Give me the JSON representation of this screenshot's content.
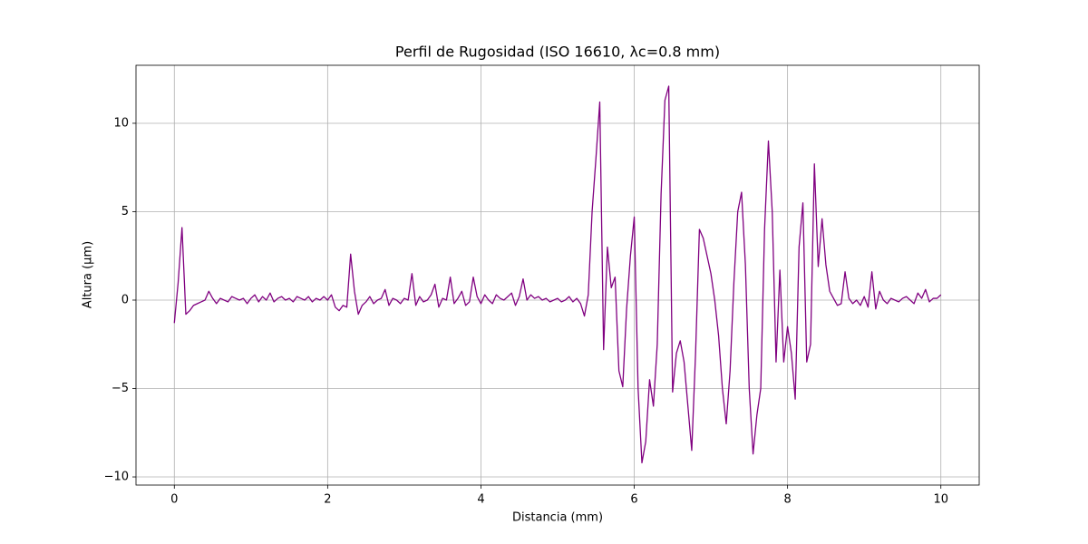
{
  "chart_data": {
    "type": "line",
    "title": "Perfil de Rugosidad (ISO 16610, λc=0.8 mm)",
    "x_label": "Distancia (mm)",
    "y_label": "Altura (µm)",
    "x": [
      0,
      0.05,
      0.1,
      0.15,
      0.2,
      0.25,
      0.3,
      0.35,
      0.4,
      0.45,
      0.5,
      0.55,
      0.6,
      0.65,
      0.7,
      0.75,
      0.8,
      0.85,
      0.9,
      0.95,
      1,
      1.05,
      1.1,
      1.15,
      1.2,
      1.25,
      1.3,
      1.35,
      1.4,
      1.45,
      1.5,
      1.55,
      1.6,
      1.65,
      1.7,
      1.75,
      1.8,
      1.85,
      1.9,
      1.95,
      2,
      2.05,
      2.1,
      2.15,
      2.2,
      2.25,
      2.3,
      2.35,
      2.4,
      2.45,
      2.5,
      2.55,
      2.6,
      2.65,
      2.7,
      2.75,
      2.8,
      2.85,
      2.9,
      2.95,
      3,
      3.05,
      3.1,
      3.15,
      3.2,
      3.25,
      3.3,
      3.35,
      3.4,
      3.45,
      3.5,
      3.55,
      3.6,
      3.65,
      3.7,
      3.75,
      3.8,
      3.85,
      3.9,
      3.95,
      4,
      4.05,
      4.1,
      4.15,
      4.2,
      4.25,
      4.3,
      4.35,
      4.4,
      4.45,
      4.5,
      4.55,
      4.6,
      4.65,
      4.7,
      4.75,
      4.8,
      4.85,
      4.9,
      4.95,
      5,
      5.05,
      5.1,
      5.15,
      5.2,
      5.25,
      5.3,
      5.35,
      5.4,
      5.45,
      5.5,
      5.55,
      5.6,
      5.65,
      5.7,
      5.75,
      5.8,
      5.85,
      5.9,
      5.95,
      6,
      6.05,
      6.1,
      6.15,
      6.2,
      6.25,
      6.3,
      6.35,
      6.4,
      6.45,
      6.5,
      6.55,
      6.6,
      6.65,
      6.7,
      6.75,
      6.8,
      6.85,
      6.9,
      6.95,
      7,
      7.05,
      7.1,
      7.15,
      7.2,
      7.25,
      7.3,
      7.35,
      7.4,
      7.45,
      7.5,
      7.55,
      7.6,
      7.65,
      7.7,
      7.75,
      7.8,
      7.85,
      7.9,
      7.95,
      8,
      8.05,
      8.1,
      8.15,
      8.2,
      8.25,
      8.3,
      8.35,
      8.4,
      8.45,
      8.5,
      8.55,
      8.6,
      8.65,
      8.7,
      8.75,
      8.8,
      8.85,
      8.9,
      8.95,
      9,
      9.05,
      9.1,
      9.15,
      9.2,
      9.25,
      9.3,
      9.35,
      9.4,
      9.45,
      9.5,
      9.55,
      9.6,
      9.65,
      9.7,
      9.75,
      9.8,
      9.85,
      9.9,
      9.95,
      10
    ],
    "series": [
      {
        "color": "#800080",
        "values": [
          -1.3,
          1.0,
          4.1,
          -0.8,
          -0.6,
          -0.3,
          -0.2,
          -0.1,
          0.0,
          0.5,
          0.1,
          -0.2,
          0.1,
          0.0,
          -0.1,
          0.2,
          0.1,
          0.0,
          0.1,
          -0.2,
          0.1,
          0.3,
          -0.1,
          0.2,
          0.0,
          0.4,
          -0.1,
          0.1,
          0.2,
          0.0,
          0.1,
          -0.1,
          0.2,
          0.1,
          0.0,
          0.2,
          -0.1,
          0.1,
          0.0,
          0.2,
          0.0,
          0.3,
          -0.4,
          -0.6,
          -0.3,
          -0.4,
          2.6,
          0.5,
          -0.8,
          -0.3,
          -0.1,
          0.2,
          -0.2,
          0.0,
          0.1,
          0.6,
          -0.3,
          0.1,
          0.0,
          -0.2,
          0.1,
          0.0,
          1.5,
          -0.3,
          0.2,
          -0.1,
          0.0,
          0.3,
          0.9,
          -0.4,
          0.1,
          0.0,
          1.3,
          -0.2,
          0.1,
          0.5,
          -0.3,
          -0.1,
          1.3,
          0.2,
          -0.2,
          0.3,
          0.0,
          -0.2,
          0.3,
          0.1,
          0.0,
          0.2,
          0.4,
          -0.3,
          0.2,
          1.2,
          0.0,
          0.3,
          0.1,
          0.2,
          0.0,
          0.1,
          -0.1,
          0.0,
          0.1,
          -0.1,
          0.0,
          0.2,
          -0.1,
          0.1,
          -0.2,
          -0.9,
          0.3,
          5.0,
          8.0,
          11.2,
          -2.8,
          3.0,
          0.7,
          1.3,
          -4.0,
          -4.9,
          -0.5,
          2.5,
          4.7,
          -5.0,
          -9.2,
          -8.0,
          -4.5,
          -6.0,
          -2.5,
          6.0,
          11.3,
          12.1,
          -5.2,
          -3.0,
          -2.3,
          -3.5,
          -6.0,
          -8.5,
          -3.0,
          4.0,
          3.5,
          2.5,
          1.5,
          0.0,
          -2.0,
          -5.0,
          -7.0,
          -4.0,
          1.0,
          5.0,
          6.1,
          2.0,
          -5.0,
          -8.7,
          -6.5,
          -5.0,
          4.0,
          9.0,
          5.0,
          -3.5,
          1.7,
          -3.5,
          -1.5,
          -3.0,
          -5.6,
          3.0,
          5.5,
          -3.5,
          -2.5,
          7.7,
          1.9,
          4.6,
          2.0,
          0.5,
          0.1,
          -0.3,
          -0.2,
          1.6,
          0.1,
          -0.2,
          0.0,
          -0.3,
          0.2,
          -0.4,
          1.6,
          -0.5,
          0.5,
          0.0,
          -0.2,
          0.1,
          0.0,
          -0.1,
          0.1,
          0.2,
          0.0,
          -0.2,
          0.4,
          0.1,
          0.6,
          -0.1,
          0.1,
          0.1,
          0.3
        ]
      }
    ],
    "xlim": [
      -0.5,
      10.5
    ],
    "ylim": [
      -10.46,
      13.28
    ],
    "xticks": [
      0,
      2,
      4,
      6,
      8,
      10
    ],
    "yticks": [
      {
        "value": -10,
        "label": "−10"
      },
      {
        "value": -5,
        "label": "−5"
      },
      0,
      5,
      10
    ],
    "grid": true
  }
}
